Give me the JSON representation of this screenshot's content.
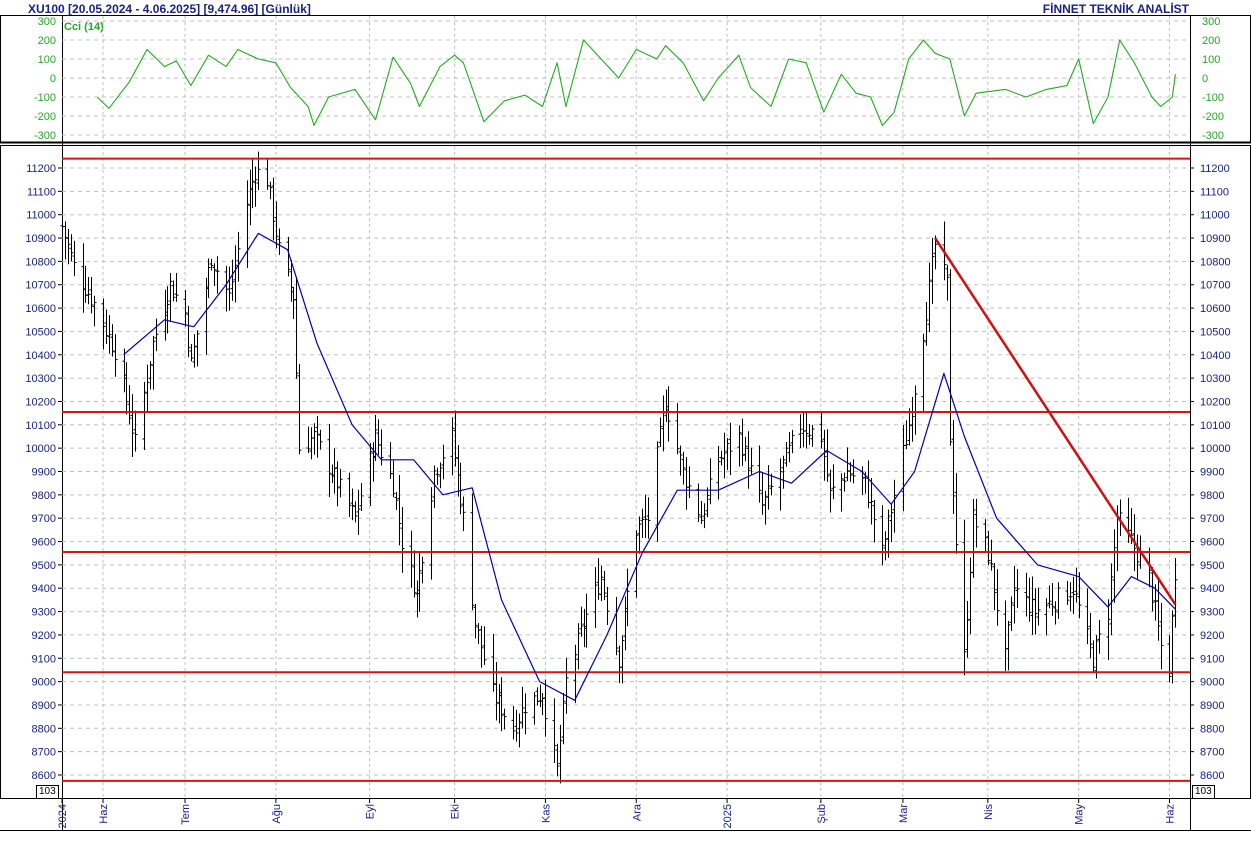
{
  "header": {
    "symbol": "XU100",
    "range": "[20.05.2024 - 4.06.2025]",
    "last": "[9,474.96]",
    "period": "[Günlük]",
    "brand": "FİNNET TEKNİK ANALİST"
  },
  "indicator": {
    "label": "Cci (14)",
    "ticks": [
      300,
      200,
      100,
      0,
      -100,
      -200,
      -300
    ],
    "tick_labels": [
      "300",
      "200",
      "100",
      "0",
      "-100",
      "-200",
      "-300"
    ],
    "range": [
      -300,
      300
    ],
    "color": "#22aa22"
  },
  "exponent_label": "10^3",
  "colors": {
    "price_bars": "#000000",
    "moving_average": "#0000aa",
    "support_resistance": "#dd1111",
    "trendline": "#cc1111",
    "axis_text": "#1a237e",
    "grid": "#c0c0c0"
  },
  "chart_data": [
    {
      "type": "bar",
      "title": "XU100 [20.05.2024 - 4.06.2025] [9,474.96] [Günlük]",
      "subtype": "ohlc_daily_with_moving_average",
      "ylim": [
        8560,
        11250
      ],
      "yticks": [
        8600,
        8700,
        8800,
        8900,
        9000,
        9100,
        9200,
        9300,
        9400,
        9500,
        9600,
        9700,
        9800,
        9900,
        10000,
        10100,
        10200,
        10300,
        10400,
        10500,
        10600,
        10700,
        10800,
        10900,
        11000,
        11100,
        11200
      ],
      "x_labels": [
        {
          "label": "2024",
          "date": "2024-05-20"
        },
        {
          "label": "Haz",
          "date": "2024-06-03"
        },
        {
          "label": "Tem",
          "date": "2024-07-01"
        },
        {
          "label": "Ağu",
          "date": "2024-08-01"
        },
        {
          "label": "Eyl",
          "date": "2024-09-02"
        },
        {
          "label": "Eki",
          "date": "2024-10-01"
        },
        {
          "label": "Kas",
          "date": "2024-11-01"
        },
        {
          "label": "Ara",
          "date": "2024-12-02"
        },
        {
          "label": "2025",
          "date": "2025-01-02"
        },
        {
          "label": "Şub",
          "date": "2025-02-03"
        },
        {
          "label": "Mar",
          "date": "2025-03-03"
        },
        {
          "label": "Nis",
          "date": "2025-04-01"
        },
        {
          "label": "May",
          "date": "2025-05-02"
        },
        {
          "label": "Haz",
          "date": "2025-06-02"
        }
      ],
      "horizontal_levels": [
        11240,
        10155,
        9555,
        9040,
        8575
      ],
      "trendline": {
        "from": {
          "date": "2025-03-14",
          "value": 10900
        },
        "to": {
          "date": "2025-06-04",
          "value": 9330
        }
      },
      "price_path": [
        {
          "date": "2024-05-20",
          "value": 10950
        },
        {
          "date": "2024-05-24",
          "value": 10780
        },
        {
          "date": "2024-05-31",
          "value": 10620
        },
        {
          "date": "2024-06-07",
          "value": 10420
        },
        {
          "date": "2024-06-12",
          "value": 10150
        },
        {
          "date": "2024-06-14",
          "value": 10020
        },
        {
          "date": "2024-06-20",
          "value": 10450
        },
        {
          "date": "2024-06-26",
          "value": 10700
        },
        {
          "date": "2024-07-01",
          "value": 10580
        },
        {
          "date": "2024-07-03",
          "value": 10360
        },
        {
          "date": "2024-07-10",
          "value": 10820
        },
        {
          "date": "2024-07-16",
          "value": 10650
        },
        {
          "date": "2024-07-22",
          "value": 11050
        },
        {
          "date": "2024-07-25",
          "value": 11190
        },
        {
          "date": "2024-07-29",
          "value": 11150
        },
        {
          "date": "2024-08-02",
          "value": 10850
        },
        {
          "date": "2024-08-07",
          "value": 10650
        },
        {
          "date": "2024-08-09",
          "value": 10000
        },
        {
          "date": "2024-08-14",
          "value": 10050
        },
        {
          "date": "2024-08-22",
          "value": 9850
        },
        {
          "date": "2024-08-28",
          "value": 9700
        },
        {
          "date": "2024-09-04",
          "value": 10050
        },
        {
          "date": "2024-09-10",
          "value": 9850
        },
        {
          "date": "2024-09-13",
          "value": 9600
        },
        {
          "date": "2024-09-18",
          "value": 9380
        },
        {
          "date": "2024-09-24",
          "value": 9900
        },
        {
          "date": "2024-09-30",
          "value": 10050
        },
        {
          "date": "2024-10-04",
          "value": 9700
        },
        {
          "date": "2024-10-08",
          "value": 9250
        },
        {
          "date": "2024-10-14",
          "value": 8950
        },
        {
          "date": "2024-10-21",
          "value": 8800
        },
        {
          "date": "2024-10-25",
          "value": 8900
        },
        {
          "date": "2024-10-31",
          "value": 8950
        },
        {
          "date": "2024-11-05",
          "value": 8620
        },
        {
          "date": "2024-11-08",
          "value": 9000
        },
        {
          "date": "2024-11-14",
          "value": 9250
        },
        {
          "date": "2024-11-20",
          "value": 9450
        },
        {
          "date": "2024-11-26",
          "value": 9100
        },
        {
          "date": "2024-12-02",
          "value": 9650
        },
        {
          "date": "2024-12-06",
          "value": 9700
        },
        {
          "date": "2024-12-10",
          "value": 10050
        },
        {
          "date": "2024-12-12",
          "value": 10200
        },
        {
          "date": "2024-12-18",
          "value": 9900
        },
        {
          "date": "2024-12-24",
          "value": 9700
        },
        {
          "date": "2024-12-30",
          "value": 9950
        },
        {
          "date": "2025-01-06",
          "value": 10050
        },
        {
          "date": "2025-01-14",
          "value": 9750
        },
        {
          "date": "2025-01-20",
          "value": 9900
        },
        {
          "date": "2025-01-27",
          "value": 10100
        },
        {
          "date": "2025-02-03",
          "value": 10050
        },
        {
          "date": "2025-02-06",
          "value": 9800
        },
        {
          "date": "2025-02-12",
          "value": 9900
        },
        {
          "date": "2025-02-18",
          "value": 9850
        },
        {
          "date": "2025-02-24",
          "value": 9550
        },
        {
          "date": "2025-02-28",
          "value": 9800
        },
        {
          "date": "2025-03-05",
          "value": 10100
        },
        {
          "date": "2025-03-10",
          "value": 10500
        },
        {
          "date": "2025-03-14",
          "value": 10870
        },
        {
          "date": "2025-03-18",
          "value": 10700
        },
        {
          "date": "2025-03-19",
          "value": 10050
        },
        {
          "date": "2025-03-21",
          "value": 9600
        },
        {
          "date": "2025-03-24",
          "value": 9100
        },
        {
          "date": "2025-03-27",
          "value": 9700
        },
        {
          "date": "2025-04-01",
          "value": 9550
        },
        {
          "date": "2025-04-07",
          "value": 9100
        },
        {
          "date": "2025-04-10",
          "value": 9400
        },
        {
          "date": "2025-04-17",
          "value": 9300
        },
        {
          "date": "2025-04-24",
          "value": 9350
        },
        {
          "date": "2025-04-30",
          "value": 9400
        },
        {
          "date": "2025-05-07",
          "value": 9100
        },
        {
          "date": "2025-05-12",
          "value": 9300
        },
        {
          "date": "2025-05-15",
          "value": 9700
        },
        {
          "date": "2025-05-20",
          "value": 9600
        },
        {
          "date": "2025-05-26",
          "value": 9450
        },
        {
          "date": "2025-05-30",
          "value": 9150
        },
        {
          "date": "2025-06-02",
          "value": 9050
        },
        {
          "date": "2025-06-04",
          "value": 9475
        }
      ],
      "moving_average_path": [
        {
          "date": "2024-06-10",
          "value": 10400
        },
        {
          "date": "2024-06-24",
          "value": 10550
        },
        {
          "date": "2024-07-04",
          "value": 10520
        },
        {
          "date": "2024-07-15",
          "value": 10700
        },
        {
          "date": "2024-07-26",
          "value": 10920
        },
        {
          "date": "2024-08-05",
          "value": 10850
        },
        {
          "date": "2024-08-15",
          "value": 10450
        },
        {
          "date": "2024-08-27",
          "value": 10100
        },
        {
          "date": "2024-09-06",
          "value": 9950
        },
        {
          "date": "2024-09-17",
          "value": 9950
        },
        {
          "date": "2024-09-27",
          "value": 9800
        },
        {
          "date": "2024-10-07",
          "value": 9830
        },
        {
          "date": "2024-10-17",
          "value": 9350
        },
        {
          "date": "2024-10-30",
          "value": 9000
        },
        {
          "date": "2024-11-11",
          "value": 8920
        },
        {
          "date": "2024-11-22",
          "value": 9200
        },
        {
          "date": "2024-12-04",
          "value": 9550
        },
        {
          "date": "2024-12-16",
          "value": 9820
        },
        {
          "date": "2024-12-30",
          "value": 9820
        },
        {
          "date": "2025-01-13",
          "value": 9900
        },
        {
          "date": "2025-01-24",
          "value": 9850
        },
        {
          "date": "2025-02-05",
          "value": 9990
        },
        {
          "date": "2025-02-17",
          "value": 9900
        },
        {
          "date": "2025-02-27",
          "value": 9760
        },
        {
          "date": "2025-03-07",
          "value": 9900
        },
        {
          "date": "2025-03-17",
          "value": 10320
        },
        {
          "date": "2025-03-24",
          "value": 10050
        },
        {
          "date": "2025-04-04",
          "value": 9700
        },
        {
          "date": "2025-04-18",
          "value": 9500
        },
        {
          "date": "2025-05-02",
          "value": 9450
        },
        {
          "date": "2025-05-12",
          "value": 9320
        },
        {
          "date": "2025-05-20",
          "value": 9450
        },
        {
          "date": "2025-05-28",
          "value": 9400
        },
        {
          "date": "2025-06-04",
          "value": 9310
        }
      ]
    },
    {
      "type": "line",
      "title": "Cci (14)",
      "ylim": [
        -300,
        300
      ],
      "series": [
        {
          "name": "Cci (14)",
          "values": [
            {
              "date": "2024-06-01",
              "value": -100
            },
            {
              "date": "2024-06-05",
              "value": -160
            },
            {
              "date": "2024-06-12",
              "value": -20
            },
            {
              "date": "2024-06-18",
              "value": 150
            },
            {
              "date": "2024-06-24",
              "value": 60
            },
            {
              "date": "2024-06-28",
              "value": 90
            },
            {
              "date": "2024-07-03",
              "value": -40
            },
            {
              "date": "2024-07-09",
              "value": 120
            },
            {
              "date": "2024-07-15",
              "value": 60
            },
            {
              "date": "2024-07-19",
              "value": 150
            },
            {
              "date": "2024-07-26",
              "value": 100
            },
            {
              "date": "2024-08-01",
              "value": 80
            },
            {
              "date": "2024-08-06",
              "value": -50
            },
            {
              "date": "2024-08-12",
              "value": -150
            },
            {
              "date": "2024-08-14",
              "value": -250
            },
            {
              "date": "2024-08-19",
              "value": -100
            },
            {
              "date": "2024-08-28",
              "value": -60
            },
            {
              "date": "2024-09-04",
              "value": -220
            },
            {
              "date": "2024-09-10",
              "value": 110
            },
            {
              "date": "2024-09-16",
              "value": -30
            },
            {
              "date": "2024-09-19",
              "value": -150
            },
            {
              "date": "2024-09-26",
              "value": 60
            },
            {
              "date": "2024-10-01",
              "value": 120
            },
            {
              "date": "2024-10-04",
              "value": 80
            },
            {
              "date": "2024-10-11",
              "value": -230
            },
            {
              "date": "2024-10-18",
              "value": -120
            },
            {
              "date": "2024-10-25",
              "value": -90
            },
            {
              "date": "2024-10-31",
              "value": -150
            },
            {
              "date": "2024-11-05",
              "value": 80
            },
            {
              "date": "2024-11-08",
              "value": -150
            },
            {
              "date": "2024-11-14",
              "value": 200
            },
            {
              "date": "2024-11-20",
              "value": 100
            },
            {
              "date": "2024-11-26",
              "value": 0
            },
            {
              "date": "2024-12-02",
              "value": 150
            },
            {
              "date": "2024-12-09",
              "value": 100
            },
            {
              "date": "2024-12-12",
              "value": 170
            },
            {
              "date": "2024-12-18",
              "value": 80
            },
            {
              "date": "2024-12-25",
              "value": -120
            },
            {
              "date": "2024-12-30",
              "value": 0
            },
            {
              "date": "2025-01-06",
              "value": 120
            },
            {
              "date": "2025-01-10",
              "value": -50
            },
            {
              "date": "2025-01-17",
              "value": -150
            },
            {
              "date": "2025-01-23",
              "value": 100
            },
            {
              "date": "2025-01-29",
              "value": 80
            },
            {
              "date": "2025-02-04",
              "value": -180
            },
            {
              "date": "2025-02-10",
              "value": 20
            },
            {
              "date": "2025-02-15",
              "value": -80
            },
            {
              "date": "2025-02-20",
              "value": -100
            },
            {
              "date": "2025-02-24",
              "value": -250
            },
            {
              "date": "2025-02-28",
              "value": -180
            },
            {
              "date": "2025-03-05",
              "value": 100
            },
            {
              "date": "2025-03-10",
              "value": 200
            },
            {
              "date": "2025-03-14",
              "value": 130
            },
            {
              "date": "2025-03-19",
              "value": 100
            },
            {
              "date": "2025-03-24",
              "value": -200
            },
            {
              "date": "2025-03-28",
              "value": -80
            },
            {
              "date": "2025-04-07",
              "value": -60
            },
            {
              "date": "2025-04-14",
              "value": -100
            },
            {
              "date": "2025-04-21",
              "value": -60
            },
            {
              "date": "2025-04-28",
              "value": -40
            },
            {
              "date": "2025-05-02",
              "value": 100
            },
            {
              "date": "2025-05-07",
              "value": -240
            },
            {
              "date": "2025-05-12",
              "value": -100
            },
            {
              "date": "2025-05-16",
              "value": 200
            },
            {
              "date": "2025-05-21",
              "value": 80
            },
            {
              "date": "2025-05-27",
              "value": -100
            },
            {
              "date": "2025-05-30",
              "value": -150
            },
            {
              "date": "2025-06-03",
              "value": -100
            },
            {
              "date": "2025-06-04",
              "value": 20
            }
          ]
        }
      ]
    }
  ]
}
